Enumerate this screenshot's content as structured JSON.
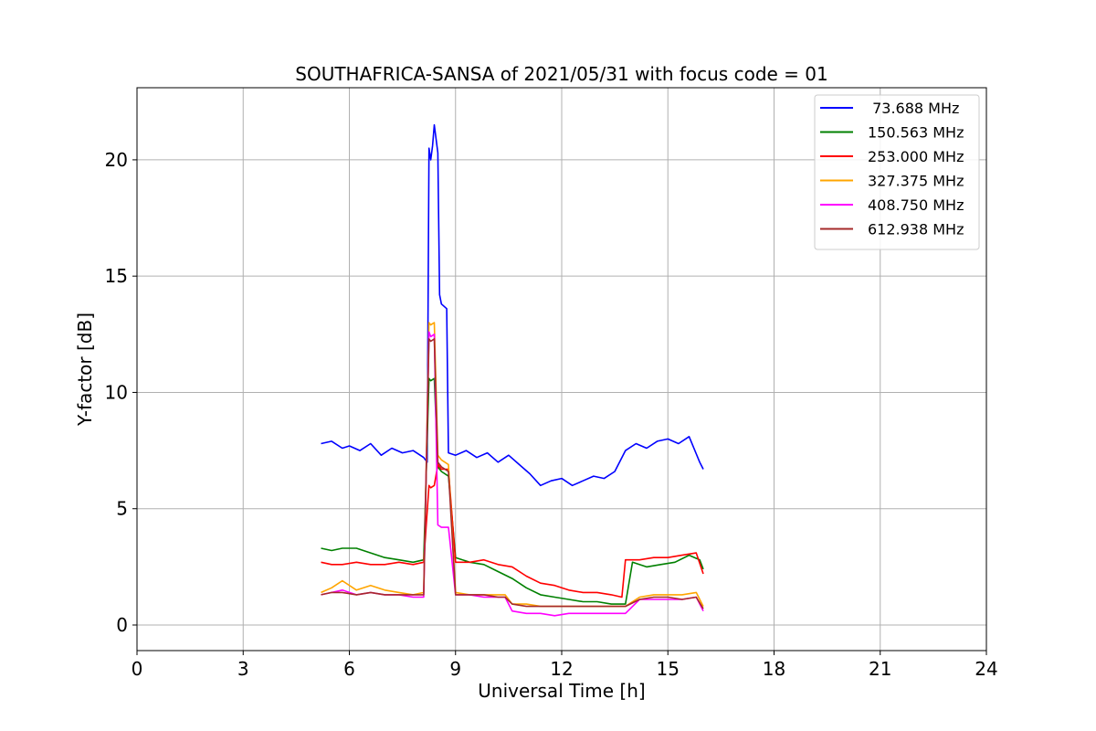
{
  "chart_data": {
    "type": "line",
    "title": "SOUTHAFRICA-SANSA of 2021/05/31 with focus code = 01",
    "xlabel": "Universal Time [h]",
    "ylabel": "Y-factor [dB]",
    "xlim": [
      0,
      24
    ],
    "ylim": [
      -1.1,
      23.1
    ],
    "xticks": [
      0,
      3,
      6,
      9,
      12,
      15,
      18,
      21,
      24
    ],
    "xtick_labels": [
      "0",
      "3",
      "6",
      "9",
      "12",
      "15",
      "18",
      "21",
      "24"
    ],
    "yticks": [
      0,
      5,
      10,
      15,
      20
    ],
    "ytick_labels": [
      "0",
      "5",
      "10",
      "15",
      "20"
    ],
    "grid": true,
    "legend_position": "top-right",
    "series": [
      {
        "name": " 73.688 MHz",
        "color": "#0000ff",
        "x": [
          5.2,
          5.5,
          5.8,
          6.0,
          6.3,
          6.6,
          6.9,
          7.2,
          7.5,
          7.8,
          8.1,
          8.2,
          8.25,
          8.3,
          8.35,
          8.4,
          8.5,
          8.55,
          8.6,
          8.75,
          8.8,
          9.0,
          9.3,
          9.6,
          9.9,
          10.2,
          10.5,
          10.8,
          11.1,
          11.4,
          11.7,
          12.0,
          12.3,
          12.6,
          12.9,
          13.2,
          13.5,
          13.8,
          14.1,
          14.4,
          14.7,
          15.0,
          15.3,
          15.6,
          15.9,
          16.0
        ],
        "y": [
          7.8,
          7.9,
          7.6,
          7.7,
          7.5,
          7.8,
          7.3,
          7.6,
          7.4,
          7.5,
          7.2,
          7.0,
          20.5,
          20.0,
          20.6,
          21.5,
          20.3,
          14.2,
          13.8,
          13.6,
          7.4,
          7.3,
          7.5,
          7.2,
          7.4,
          7.0,
          7.3,
          6.9,
          6.5,
          6.0,
          6.2,
          6.3,
          6.0,
          6.2,
          6.4,
          6.3,
          6.6,
          7.5,
          7.8,
          7.6,
          7.9,
          8.0,
          7.8,
          8.1,
          7.0,
          6.7
        ]
      },
      {
        "name": "150.563 MHz",
        "color": "#008000",
        "x": [
          5.2,
          5.5,
          5.8,
          6.2,
          6.6,
          7.0,
          7.4,
          7.8,
          8.1,
          8.25,
          8.3,
          8.4,
          8.5,
          8.6,
          8.8,
          9.0,
          9.4,
          9.8,
          10.2,
          10.6,
          11.0,
          11.4,
          11.8,
          12.2,
          12.6,
          13.0,
          13.4,
          13.8,
          14.0,
          14.4,
          14.8,
          15.2,
          15.6,
          15.9,
          16.0
        ],
        "y": [
          3.3,
          3.2,
          3.3,
          3.3,
          3.1,
          2.9,
          2.8,
          2.7,
          2.8,
          10.6,
          10.5,
          10.6,
          6.8,
          6.6,
          6.4,
          2.9,
          2.7,
          2.6,
          2.3,
          2.0,
          1.6,
          1.3,
          1.2,
          1.1,
          1.0,
          1.0,
          0.9,
          0.9,
          2.7,
          2.5,
          2.6,
          2.7,
          3.0,
          2.8,
          2.4
        ]
      },
      {
        "name": "253.000 MHz",
        "color": "#ff0000",
        "x": [
          5.2,
          5.5,
          5.8,
          6.2,
          6.6,
          7.0,
          7.4,
          7.8,
          8.1,
          8.25,
          8.3,
          8.4,
          8.5,
          8.6,
          8.8,
          9.0,
          9.4,
          9.8,
          10.2,
          10.6,
          11.0,
          11.4,
          11.8,
          12.2,
          12.6,
          13.0,
          13.4,
          13.7,
          13.8,
          14.2,
          14.6,
          15.0,
          15.4,
          15.8,
          16.0
        ],
        "y": [
          2.7,
          2.6,
          2.6,
          2.7,
          2.6,
          2.6,
          2.7,
          2.6,
          2.7,
          6.0,
          5.9,
          6.0,
          6.9,
          6.7,
          6.7,
          2.7,
          2.7,
          2.8,
          2.6,
          2.5,
          2.1,
          1.8,
          1.7,
          1.5,
          1.4,
          1.4,
          1.3,
          1.2,
          2.8,
          2.8,
          2.9,
          2.9,
          3.0,
          3.1,
          2.2
        ]
      },
      {
        "name": "327.375 MHz",
        "color": "#ffa500",
        "x": [
          5.2,
          5.5,
          5.8,
          6.2,
          6.6,
          7.0,
          7.4,
          7.8,
          8.1,
          8.25,
          8.3,
          8.4,
          8.5,
          8.6,
          8.8,
          9.0,
          9.4,
          9.8,
          10.2,
          10.4,
          10.6,
          11.0,
          11.4,
          11.8,
          12.2,
          12.6,
          13.0,
          13.4,
          13.8,
          14.2,
          14.6,
          15.0,
          15.4,
          15.8,
          16.0
        ],
        "y": [
          1.4,
          1.6,
          1.9,
          1.5,
          1.7,
          1.5,
          1.4,
          1.3,
          1.4,
          13.0,
          12.9,
          13.0,
          7.3,
          7.1,
          6.9,
          1.4,
          1.3,
          1.3,
          1.3,
          1.3,
          0.9,
          0.9,
          0.8,
          0.8,
          0.8,
          0.8,
          0.8,
          0.8,
          0.8,
          1.2,
          1.3,
          1.3,
          1.3,
          1.4,
          0.8
        ]
      },
      {
        "name": "408.750 MHz",
        "color": "#ff00ff",
        "x": [
          5.2,
          5.5,
          5.8,
          6.2,
          6.6,
          7.0,
          7.4,
          7.8,
          8.1,
          8.25,
          8.3,
          8.4,
          8.5,
          8.6,
          8.8,
          9.0,
          9.4,
          9.8,
          10.2,
          10.4,
          10.6,
          11.0,
          11.4,
          11.8,
          12.2,
          12.6,
          13.0,
          13.4,
          13.8,
          14.2,
          14.6,
          15.0,
          15.4,
          15.8,
          16.0
        ],
        "y": [
          1.3,
          1.4,
          1.5,
          1.3,
          1.4,
          1.3,
          1.3,
          1.2,
          1.2,
          12.6,
          12.4,
          12.5,
          4.3,
          4.2,
          4.2,
          1.3,
          1.3,
          1.2,
          1.2,
          1.2,
          0.6,
          0.5,
          0.5,
          0.4,
          0.5,
          0.5,
          0.5,
          0.5,
          0.5,
          1.1,
          1.1,
          1.1,
          1.1,
          1.2,
          0.6
        ]
      },
      {
        "name": "612.938 MHz",
        "color": "#a52a2a",
        "x": [
          5.2,
          5.5,
          5.8,
          6.2,
          6.6,
          7.0,
          7.4,
          7.8,
          8.1,
          8.25,
          8.3,
          8.4,
          8.5,
          8.6,
          8.8,
          9.0,
          9.4,
          9.8,
          10.2,
          10.4,
          10.6,
          11.0,
          11.4,
          11.8,
          12.2,
          12.6,
          13.0,
          13.4,
          13.8,
          14.2,
          14.6,
          15.0,
          15.4,
          15.8,
          16.0
        ],
        "y": [
          1.3,
          1.4,
          1.4,
          1.3,
          1.4,
          1.3,
          1.3,
          1.3,
          1.3,
          12.3,
          12.2,
          12.3,
          7.0,
          6.8,
          6.6,
          1.3,
          1.3,
          1.3,
          1.2,
          1.2,
          0.9,
          0.8,
          0.8,
          0.8,
          0.8,
          0.8,
          0.8,
          0.8,
          0.8,
          1.1,
          1.2,
          1.2,
          1.1,
          1.2,
          0.7
        ]
      }
    ]
  }
}
